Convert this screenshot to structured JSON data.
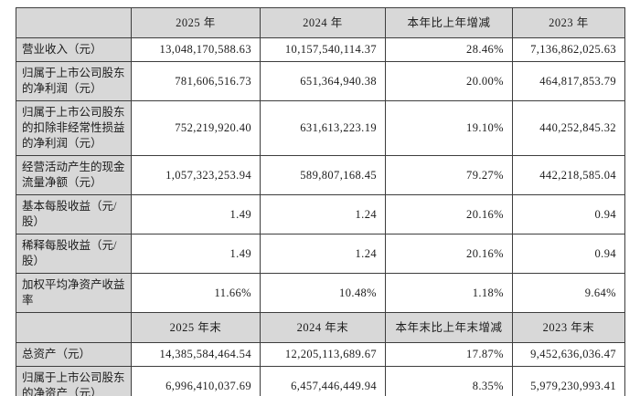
{
  "table": {
    "title_semantic": "主要会计数据和财务指标",
    "sections": [
      {
        "header": [
          "",
          "2025 年",
          "2024 年",
          "本年比上年增减",
          "2023 年"
        ],
        "rows": [
          {
            "label": "营业收入（元）",
            "values": [
              "13,048,170,588.63",
              "10,157,540,114.37",
              "28.46%",
              "7,136,862,025.63"
            ]
          },
          {
            "label": "归属于上市公司股东的净利润（元）",
            "values": [
              "781,606,516.73",
              "651,364,940.38",
              "20.00%",
              "464,817,853.79"
            ]
          },
          {
            "label": "归属于上市公司股东的扣除非经常性损益的净利润（元）",
            "values": [
              "752,219,920.40",
              "631,613,223.19",
              "19.10%",
              "440,252,845.32"
            ]
          },
          {
            "label": "经营活动产生的现金流量净额（元）",
            "values": [
              "1,057,323,253.94",
              "589,807,168.45",
              "79.27%",
              "442,218,585.04"
            ]
          },
          {
            "label": "基本每股收益（元/股）",
            "values": [
              "1.49",
              "1.24",
              "20.16%",
              "0.94"
            ]
          },
          {
            "label": "稀释每股收益（元/股）",
            "values": [
              "1.49",
              "1.24",
              "20.16%",
              "0.94"
            ]
          },
          {
            "label": "加权平均净资产收益率",
            "values": [
              "11.66%",
              "10.48%",
              "1.18%",
              "9.64%"
            ]
          }
        ]
      },
      {
        "header": [
          "",
          "2025 年末",
          "2024 年末",
          "本年末比上年末增减",
          "2023 年末"
        ],
        "rows": [
          {
            "label": "总资产（元）",
            "values": [
              "14,385,584,464.54",
              "12,205,113,689.67",
              "17.87%",
              "9,452,636,036.47"
            ]
          },
          {
            "label": "归属于上市公司股东的净资产（元）",
            "values": [
              "6,996,410,037.69",
              "6,457,446,449.94",
              "8.35%",
              "5,979,230,993.41"
            ]
          }
        ]
      }
    ]
  },
  "colors": {
    "page_bg": "#ffffff",
    "cell_bg": "#ffffff",
    "header_bg": "#d8d8d8",
    "border": "#3d3d3d",
    "text": "#1c1c1c"
  }
}
